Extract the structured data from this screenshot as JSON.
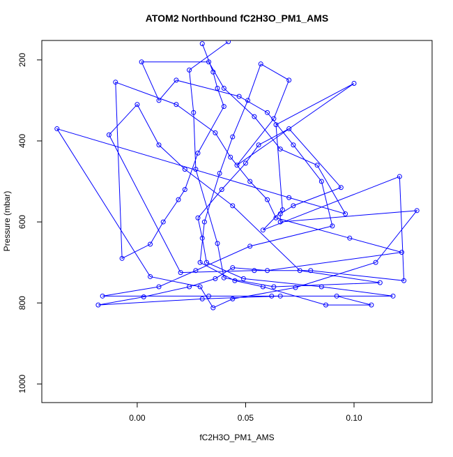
{
  "chart_data": {
    "type": "line",
    "title": "ATOM2 Northbound fC2H3O_PM1_AMS",
    "x_label": "fC2H3O_PM1_AMS",
    "y_label": "Pressure (mbar)",
    "color": "#0000ff",
    "markers": true,
    "x": [
      0.03,
      0.035,
      0.037,
      0.04,
      0.028,
      0.022,
      0.019,
      0.012,
      0.006,
      -0.007,
      -0.01,
      0.018,
      0.036,
      0.043,
      0.052,
      0.06,
      0.064,
      0.098,
      0.122,
      0.06,
      0.044,
      0.036,
      0.024,
      0.003,
      -0.018,
      0.03,
      0.066,
      0.118,
      0.085,
      0.049,
      0.032,
      0.03,
      0.028,
      0.039,
      0.05,
      0.056,
      0.07,
      0.094,
      0.072,
      0.066,
      0.066,
      0.129,
      0.11,
      0.073,
      0.044,
      0.035,
      0.029,
      0.006,
      -0.037,
      0.07,
      0.096,
      0.083,
      0.066,
      0.054,
      0.04,
      0.033,
      0.002,
      0.01,
      0.018,
      0.047,
      0.06,
      0.072,
      0.085,
      0.09,
      0.052,
      0.027,
      0.01,
      -0.016,
      0.033,
      0.062,
      0.092,
      0.108,
      0.087,
      0.058,
      0.045,
      0.029,
      0.031,
      0.038,
      0.044,
      0.051,
      0.057,
      0.07,
      0.063,
      0.046,
      0.1,
      0.064,
      0.067,
      0.058,
      0.121,
      0.123,
      0.08,
      0.054,
      0.02,
      -0.013,
      0.0,
      0.01,
      0.022,
      0.044,
      0.075,
      0.112,
      0.063,
      0.04,
      0.037,
      0.027,
      0.026,
      0.024,
      0.042
    ],
    "values": [
      160,
      230,
      270,
      315,
      430,
      520,
      545,
      600,
      655,
      690,
      255,
      310,
      380,
      440,
      500,
      545,
      590,
      640,
      675,
      720,
      713,
      740,
      760,
      785,
      805,
      790,
      783,
      783,
      760,
      740,
      700,
      640,
      590,
      520,
      455,
      410,
      370,
      515,
      560,
      580,
      600,
      572,
      700,
      762,
      790,
      812,
      760,
      735,
      370,
      540,
      580,
      460,
      420,
      340,
      270,
      205,
      205,
      300,
      250,
      290,
      330,
      410,
      500,
      610,
      660,
      720,
      760,
      783,
      783,
      783,
      783,
      805,
      805,
      760,
      745,
      700,
      600,
      480,
      390,
      300,
      210,
      250,
      345,
      460,
      258,
      360,
      570,
      620,
      488,
      745,
      720,
      720,
      725,
      385,
      310,
      410,
      470,
      560,
      720,
      750,
      760,
      738,
      653,
      470,
      330,
      225,
      155
    ],
    "xlim": [
      -0.044,
      0.136
    ],
    "ylim": [
      1046,
      152
    ],
    "xticks": [
      {
        "value": 0,
        "label": "0.00"
      },
      {
        "value": 0.05,
        "label": "0.05"
      },
      {
        "value": 0.1,
        "label": "0.10"
      }
    ],
    "yticks": [
      200,
      400,
      600,
      800,
      1000
    ]
  }
}
